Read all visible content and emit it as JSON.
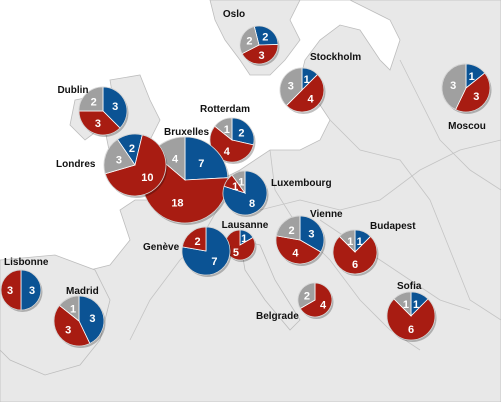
{
  "colors": {
    "sea": "#ffffff",
    "land": "#e8e8e8",
    "border": "#bdbdbd",
    "series_colors": [
      "#0b5394",
      "#a81c12",
      "#a0a0a0"
    ]
  },
  "cities": [
    {
      "name": "Oslo",
      "values": [
        2,
        3,
        2
      ]
    },
    {
      "name": "Stockholm",
      "values": [
        1,
        4,
        3
      ]
    },
    {
      "name": "Moscou",
      "values": [
        1,
        3,
        3
      ]
    },
    {
      "name": "Dublin",
      "values": [
        3,
        3,
        2
      ]
    },
    {
      "name": "Rotterdam",
      "values": [
        2,
        4,
        1
      ]
    },
    {
      "name": "Bruxelles",
      "values": [
        7,
        18,
        4
      ]
    },
    {
      "name": "Londres",
      "values": [
        2,
        10,
        3
      ]
    },
    {
      "name": "Luxembourg",
      "values": [
        8,
        1,
        1
      ]
    },
    {
      "name": "Lausanne",
      "values": [
        1,
        5,
        0
      ]
    },
    {
      "name": "Genève",
      "values": [
        7,
        2,
        0
      ]
    },
    {
      "name": "Vienne",
      "values": [
        3,
        4,
        2
      ]
    },
    {
      "name": "Budapest",
      "values": [
        1,
        6,
        1
      ]
    },
    {
      "name": "Lisbonne",
      "values": [
        3,
        3,
        0
      ]
    },
    {
      "name": "Madrid",
      "values": [
        3,
        3,
        1
      ]
    },
    {
      "name": "Belgrade",
      "values": [
        0,
        4,
        2
      ]
    },
    {
      "name": "Sofia",
      "values": [
        1,
        6,
        1
      ]
    }
  ]
}
